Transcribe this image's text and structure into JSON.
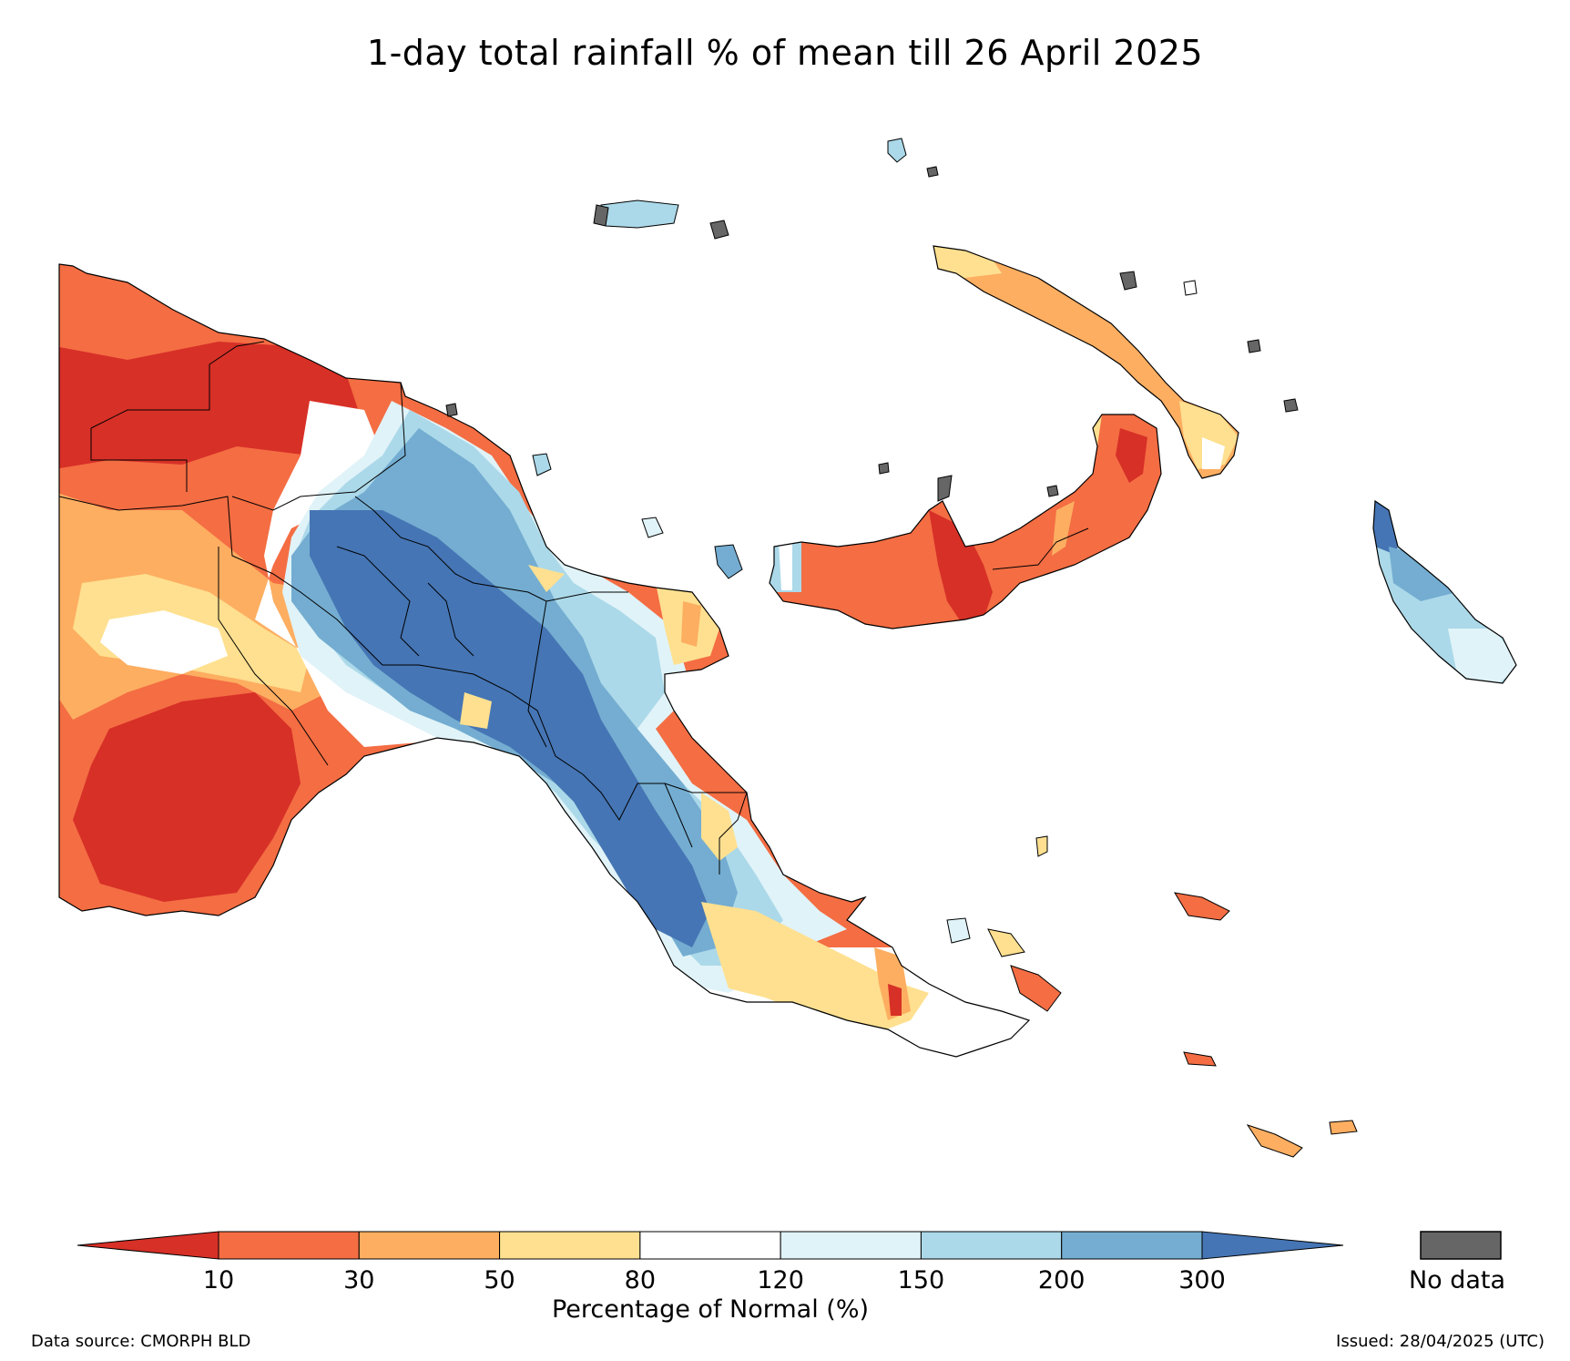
{
  "title": "1-day total rainfall % of mean till 26 April 2025",
  "colors": {
    "lt10": "#d73027",
    "c10_30": "#f46d43",
    "c30_50": "#fdae61",
    "c50_80": "#fee090",
    "c80_120": "#ffffff",
    "c120_150": "#e0f3f8",
    "c150_200": "#abd9e9",
    "c200_300": "#74add1",
    "gt300": "#4575b4",
    "nodata": "#666666",
    "border": "#000000"
  },
  "legend": {
    "ticks": [
      "10",
      "30",
      "50",
      "80",
      "120",
      "150",
      "200",
      "300"
    ],
    "label": "Percentage of Normal (%)",
    "nodata_label": "No data"
  },
  "footer": {
    "source": "Data source: CMORPH BLD",
    "issued": "Issued: 28/04/2025 (UTC)"
  }
}
